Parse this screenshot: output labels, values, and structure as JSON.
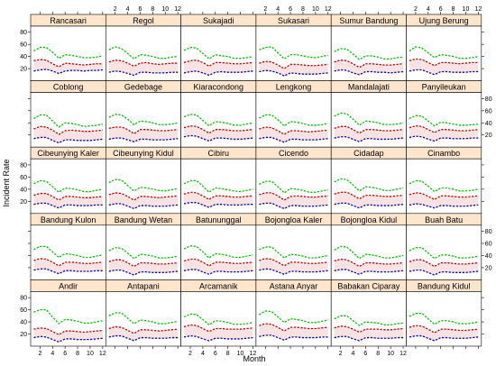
{
  "chart_data": {
    "type": "line",
    "xlabel": "Month",
    "ylabel": "Incident Rate",
    "x": [
      1,
      2,
      3,
      4,
      5,
      6,
      7,
      8,
      9,
      10,
      11,
      12
    ],
    "xlim": [
      0.5,
      12.5
    ],
    "ylim": [
      0,
      90
    ],
    "x_ticks": [
      "2",
      "4",
      "6",
      "8",
      "10",
      "12"
    ],
    "y_ticks": [
      "20",
      "40",
      "60",
      "80"
    ],
    "layout": {
      "columns": 6,
      "rows": 5
    },
    "series_colors": [
      "#00c000",
      "#c00000",
      "#0000c0"
    ],
    "band_color": "#f2c6c6",
    "strip_color": "#ffe5cc",
    "panels": [
      {
        "name": "Rancasari",
        "green": [
          49,
          55,
          55,
          47,
          37,
          43,
          42,
          40,
          38,
          38,
          39,
          41
        ],
        "red": [
          33,
          35,
          34,
          28,
          23,
          29,
          28,
          27,
          26,
          27,
          28,
          28
        ],
        "blue": [
          16,
          18,
          19,
          16,
          12,
          16,
          17,
          17,
          16,
          17,
          17,
          18
        ]
      },
      {
        "name": "Regol",
        "green": [
          51,
          56,
          53,
          45,
          36,
          43,
          42,
          40,
          37,
          37,
          39,
          40
        ],
        "red": [
          31,
          34,
          33,
          29,
          24,
          29,
          30,
          28,
          27,
          28,
          29,
          29
        ],
        "blue": [
          14,
          16,
          15,
          12,
          9,
          14,
          14,
          13,
          13,
          13,
          14,
          14
        ]
      },
      {
        "name": "Sukajadi",
        "green": [
          50,
          55,
          54,
          45,
          36,
          43,
          41,
          40,
          37,
          37,
          38,
          40
        ],
        "red": [
          30,
          33,
          34,
          30,
          24,
          30,
          30,
          29,
          28,
          28,
          29,
          30
        ],
        "blue": [
          13,
          15,
          16,
          13,
          9,
          14,
          15,
          14,
          14,
          14,
          15,
          16
        ]
      },
      {
        "name": "Sukasari",
        "green": [
          51,
          55,
          56,
          46,
          36,
          43,
          43,
          41,
          39,
          38,
          40,
          42
        ],
        "red": [
          29,
          32,
          31,
          26,
          20,
          27,
          27,
          26,
          25,
          25,
          26,
          27
        ],
        "blue": [
          15,
          17,
          16,
          13,
          8,
          13,
          12,
          11,
          11,
          11,
          12,
          13
        ]
      },
      {
        "name": "Sumur Bandung",
        "green": [
          48,
          53,
          52,
          44,
          35,
          41,
          41,
          39,
          36,
          36,
          38,
          39
        ],
        "red": [
          31,
          34,
          33,
          28,
          22,
          28,
          28,
          27,
          26,
          26,
          27,
          28
        ],
        "blue": [
          16,
          18,
          17,
          13,
          10,
          15,
          15,
          14,
          14,
          13,
          14,
          15
        ]
      },
      {
        "name": "Ujung Berung",
        "green": [
          49,
          56,
          54,
          46,
          38,
          43,
          42,
          40,
          37,
          37,
          38,
          40
        ],
        "red": [
          33,
          36,
          35,
          30,
          25,
          30,
          30,
          29,
          28,
          29,
          30,
          30
        ],
        "blue": [
          16,
          18,
          18,
          14,
          10,
          15,
          15,
          14,
          14,
          14,
          15,
          15
        ]
      },
      {
        "name": "Coblong",
        "green": [
          47,
          53,
          53,
          43,
          33,
          40,
          39,
          37,
          34,
          35,
          36,
          38
        ],
        "red": [
          30,
          34,
          33,
          28,
          21,
          27,
          28,
          27,
          26,
          26,
          27,
          28
        ],
        "blue": [
          14,
          16,
          16,
          11,
          7,
          12,
          12,
          11,
          11,
          11,
          12,
          13
        ]
      },
      {
        "name": "Gedebage",
        "green": [
          49,
          54,
          53,
          46,
          37,
          43,
          42,
          40,
          37,
          37,
          38,
          40
        ],
        "red": [
          31,
          33,
          33,
          29,
          22,
          29,
          29,
          28,
          27,
          27,
          28,
          29
        ],
        "blue": [
          13,
          15,
          15,
          12,
          9,
          13,
          13,
          12,
          12,
          12,
          13,
          14
        ]
      },
      {
        "name": "Kiaracondong",
        "green": [
          50,
          54,
          53,
          44,
          35,
          42,
          41,
          39,
          36,
          36,
          38,
          40
        ],
        "red": [
          32,
          35,
          34,
          29,
          23,
          29,
          29,
          28,
          27,
          27,
          28,
          29
        ],
        "blue": [
          17,
          19,
          18,
          14,
          10,
          15,
          15,
          14,
          13,
          13,
          14,
          15
        ]
      },
      {
        "name": "Lengkong",
        "green": [
          48,
          53,
          53,
          45,
          35,
          42,
          41,
          39,
          36,
          36,
          37,
          39
        ],
        "red": [
          30,
          33,
          32,
          27,
          21,
          27,
          27,
          26,
          25,
          26,
          27,
          28
        ],
        "blue": [
          14,
          16,
          16,
          12,
          8,
          13,
          13,
          12,
          12,
          12,
          13,
          14
        ]
      },
      {
        "name": "Mandalajati",
        "green": [
          51,
          56,
          55,
          46,
          36,
          43,
          42,
          40,
          37,
          37,
          38,
          40
        ],
        "red": [
          31,
          34,
          34,
          29,
          23,
          29,
          29,
          28,
          27,
          27,
          28,
          29
        ],
        "blue": [
          15,
          17,
          17,
          13,
          9,
          14,
          14,
          13,
          13,
          13,
          14,
          15
        ]
      },
      {
        "name": "Panyileukan",
        "green": [
          47,
          52,
          51,
          43,
          35,
          41,
          40,
          38,
          36,
          36,
          37,
          38
        ],
        "red": [
          32,
          35,
          34,
          29,
          24,
          29,
          29,
          28,
          27,
          27,
          28,
          29
        ],
        "blue": [
          16,
          18,
          17,
          13,
          10,
          15,
          15,
          14,
          14,
          14,
          15,
          15
        ]
      },
      {
        "name": "Cibeunying Kaler",
        "green": [
          49,
          54,
          53,
          44,
          35,
          42,
          41,
          39,
          36,
          36,
          38,
          40
        ],
        "red": [
          30,
          33,
          33,
          28,
          22,
          28,
          28,
          27,
          26,
          26,
          27,
          28
        ],
        "blue": [
          15,
          17,
          17,
          13,
          9,
          14,
          14,
          13,
          13,
          13,
          14,
          14
        ]
      },
      {
        "name": "Cibeunying Kidul",
        "green": [
          51,
          56,
          55,
          46,
          37,
          43,
          42,
          40,
          38,
          37,
          39,
          41
        ],
        "red": [
          31,
          34,
          33,
          28,
          22,
          28,
          28,
          27,
          26,
          27,
          28,
          29
        ],
        "blue": [
          14,
          16,
          16,
          12,
          8,
          13,
          13,
          12,
          12,
          12,
          13,
          14
        ]
      },
      {
        "name": "Cibiru",
        "green": [
          49,
          54,
          54,
          45,
          35,
          42,
          41,
          39,
          37,
          36,
          38,
          40
        ],
        "red": [
          32,
          35,
          34,
          29,
          23,
          29,
          29,
          28,
          27,
          27,
          28,
          29
        ],
        "blue": [
          16,
          18,
          18,
          14,
          10,
          15,
          15,
          14,
          14,
          14,
          15,
          15
        ]
      },
      {
        "name": "Cicendo",
        "green": [
          48,
          53,
          53,
          44,
          34,
          41,
          40,
          38,
          35,
          35,
          37,
          39
        ],
        "red": [
          31,
          34,
          34,
          29,
          22,
          28,
          29,
          28,
          27,
          27,
          28,
          29
        ],
        "blue": [
          15,
          17,
          17,
          12,
          8,
          13,
          13,
          12,
          12,
          12,
          13,
          14
        ]
      },
      {
        "name": "Cidadap",
        "green": [
          52,
          57,
          56,
          47,
          37,
          44,
          43,
          41,
          38,
          38,
          40,
          42
        ],
        "red": [
          32,
          35,
          35,
          30,
          24,
          30,
          30,
          29,
          28,
          28,
          29,
          30
        ],
        "blue": [
          15,
          17,
          17,
          13,
          9,
          14,
          14,
          13,
          13,
          13,
          14,
          15
        ]
      },
      {
        "name": "Cinambo",
        "green": [
          49,
          54,
          53,
          45,
          36,
          42,
          42,
          40,
          37,
          37,
          38,
          40
        ],
        "red": [
          31,
          34,
          33,
          28,
          23,
          29,
          29,
          28,
          27,
          27,
          28,
          29
        ],
        "blue": [
          14,
          16,
          15,
          12,
          9,
          13,
          13,
          12,
          12,
          12,
          13,
          14
        ]
      },
      {
        "name": "Bandung Kulon",
        "green": [
          50,
          55,
          55,
          46,
          37,
          43,
          42,
          40,
          37,
          37,
          39,
          41
        ],
        "red": [
          32,
          35,
          34,
          29,
          23,
          29,
          29,
          28,
          27,
          27,
          28,
          29
        ],
        "blue": [
          16,
          18,
          18,
          14,
          10,
          15,
          15,
          14,
          14,
          14,
          15,
          15
        ]
      },
      {
        "name": "Bandung Wetan",
        "green": [
          48,
          53,
          52,
          44,
          35,
          42,
          41,
          39,
          36,
          36,
          37,
          39
        ],
        "red": [
          30,
          33,
          33,
          28,
          22,
          28,
          28,
          27,
          26,
          26,
          27,
          28
        ],
        "blue": [
          14,
          16,
          16,
          12,
          8,
          13,
          13,
          12,
          12,
          12,
          13,
          14
        ]
      },
      {
        "name": "Batununggal",
        "green": [
          51,
          56,
          55,
          46,
          36,
          43,
          42,
          40,
          37,
          37,
          39,
          41
        ],
        "red": [
          31,
          34,
          34,
          29,
          23,
          29,
          29,
          28,
          27,
          27,
          28,
          29
        ],
        "blue": [
          15,
          17,
          17,
          13,
          9,
          14,
          14,
          13,
          13,
          13,
          14,
          15
        ]
      },
      {
        "name": "Bojongloa Kaler",
        "green": [
          50,
          54,
          54,
          45,
          36,
          42,
          41,
          39,
          36,
          36,
          38,
          40
        ],
        "red": [
          32,
          35,
          34,
          29,
          23,
          29,
          29,
          28,
          27,
          27,
          28,
          29
        ],
        "blue": [
          16,
          18,
          17,
          13,
          9,
          14,
          14,
          13,
          13,
          13,
          14,
          15
        ]
      },
      {
        "name": "Bojongloa Kidul",
        "green": [
          49,
          55,
          54,
          45,
          35,
          42,
          41,
          39,
          36,
          36,
          38,
          40
        ],
        "red": [
          31,
          34,
          33,
          28,
          22,
          28,
          28,
          27,
          26,
          26,
          27,
          28
        ],
        "blue": [
          15,
          17,
          17,
          13,
          9,
          14,
          14,
          13,
          13,
          13,
          14,
          15
        ]
      },
      {
        "name": "Buah Batu",
        "green": [
          48,
          53,
          53,
          44,
          35,
          41,
          41,
          39,
          36,
          36,
          37,
          39
        ],
        "red": [
          30,
          33,
          33,
          28,
          22,
          28,
          28,
          27,
          26,
          26,
          27,
          28
        ],
        "blue": [
          14,
          16,
          16,
          12,
          8,
          13,
          13,
          12,
          12,
          12,
          13,
          14
        ]
      },
      {
        "name": "Andir",
        "green": [
          56,
          60,
          60,
          48,
          37,
          44,
          43,
          41,
          38,
          38,
          40,
          42
        ],
        "red": [
          28,
          30,
          29,
          24,
          19,
          25,
          25,
          24,
          23,
          24,
          25,
          26
        ],
        "blue": [
          14,
          16,
          15,
          11,
          7,
          12,
          12,
          11,
          11,
          11,
          12,
          13
        ]
      },
      {
        "name": "Antapani",
        "green": [
          50,
          55,
          55,
          46,
          37,
          43,
          42,
          40,
          37,
          37,
          39,
          41
        ],
        "red": [
          29,
          32,
          31,
          26,
          21,
          27,
          27,
          26,
          25,
          26,
          27,
          28
        ],
        "blue": [
          15,
          17,
          17,
          13,
          9,
          14,
          14,
          13,
          13,
          13,
          14,
          14
        ]
      },
      {
        "name": "Arcamanik",
        "green": [
          48,
          53,
          52,
          44,
          35,
          42,
          41,
          39,
          36,
          36,
          37,
          39
        ],
        "red": [
          32,
          35,
          34,
          29,
          24,
          29,
          29,
          28,
          28,
          28,
          29,
          30
        ],
        "blue": [
          15,
          17,
          16,
          12,
          9,
          13,
          13,
          12,
          12,
          12,
          13,
          14
        ]
      },
      {
        "name": "Astana Anyar",
        "green": [
          52,
          58,
          57,
          48,
          39,
          45,
          44,
          42,
          39,
          39,
          41,
          43
        ],
        "red": [
          34,
          37,
          36,
          31,
          25,
          31,
          31,
          30,
          29,
          29,
          30,
          31
        ],
        "blue": [
          16,
          18,
          18,
          14,
          10,
          15,
          15,
          14,
          14,
          14,
          15,
          15
        ]
      },
      {
        "name": "Babakan Ciparay",
        "green": [
          45,
          50,
          50,
          42,
          34,
          40,
          39,
          38,
          35,
          35,
          37,
          38
        ],
        "red": [
          30,
          33,
          32,
          28,
          23,
          28,
          28,
          28,
          27,
          27,
          28,
          29
        ],
        "blue": [
          14,
          16,
          16,
          12,
          9,
          14,
          14,
          13,
          13,
          13,
          14,
          14
        ]
      },
      {
        "name": "Bandung Kidul",
        "green": [
          49,
          54,
          54,
          45,
          36,
          42,
          42,
          40,
          37,
          37,
          38,
          40
        ],
        "red": [
          31,
          34,
          33,
          28,
          22,
          28,
          28,
          27,
          26,
          26,
          27,
          28
        ],
        "blue": [
          15,
          17,
          17,
          13,
          9,
          14,
          14,
          13,
          13,
          13,
          14,
          15
        ]
      }
    ]
  }
}
